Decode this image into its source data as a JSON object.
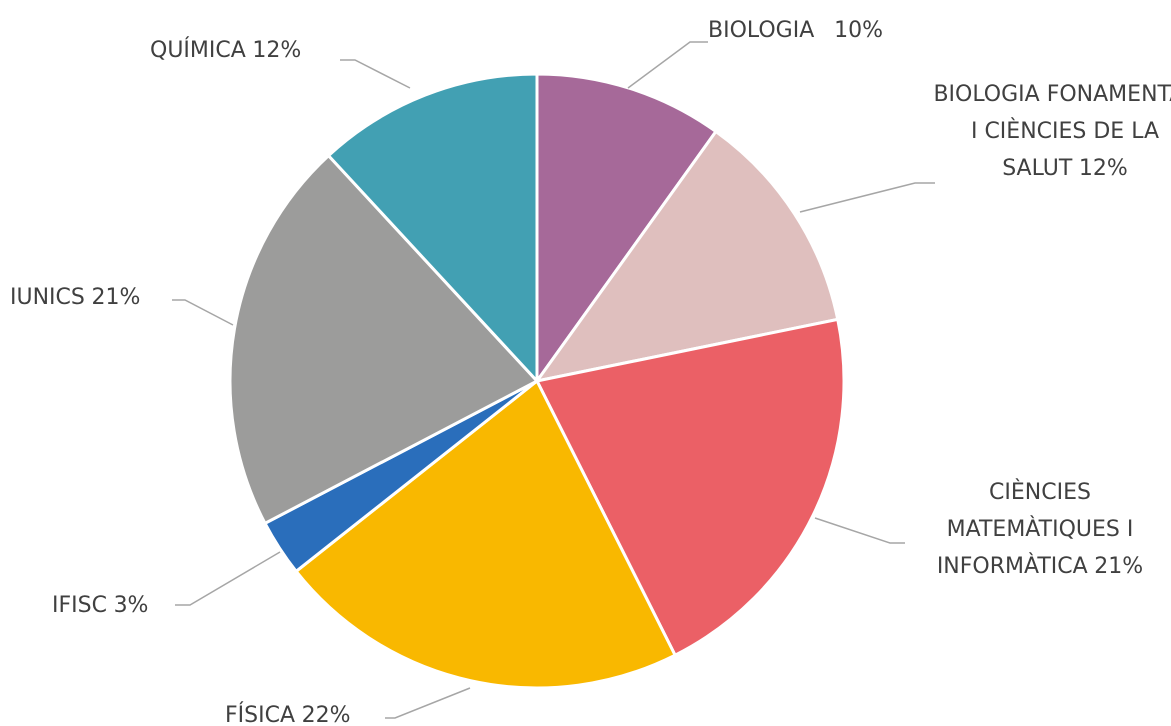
{
  "chart_data": {
    "type": "pie",
    "categories": [
      "BIOLOGIA",
      "BIOLOGIA FONAMENTAL I CIÈNCIES DE LA SALUT",
      "CIÈNCIES MATEMÀTIQUES I INFORMÀTICA",
      "FÍSICA",
      "IFISC",
      "IUNICS",
      "QUÍMICA"
    ],
    "values": [
      10,
      12,
      21,
      22,
      3,
      21,
      12
    ],
    "value_labels": [
      "10%",
      "12%",
      "21%",
      "22%",
      "3%",
      "21%",
      "12%"
    ],
    "colors": [
      "#a66999",
      "#dfbfbe",
      "#eb6066",
      "#f9b800",
      "#2a6ebb",
      "#9c9c9b",
      "#42a0b3"
    ]
  }
}
